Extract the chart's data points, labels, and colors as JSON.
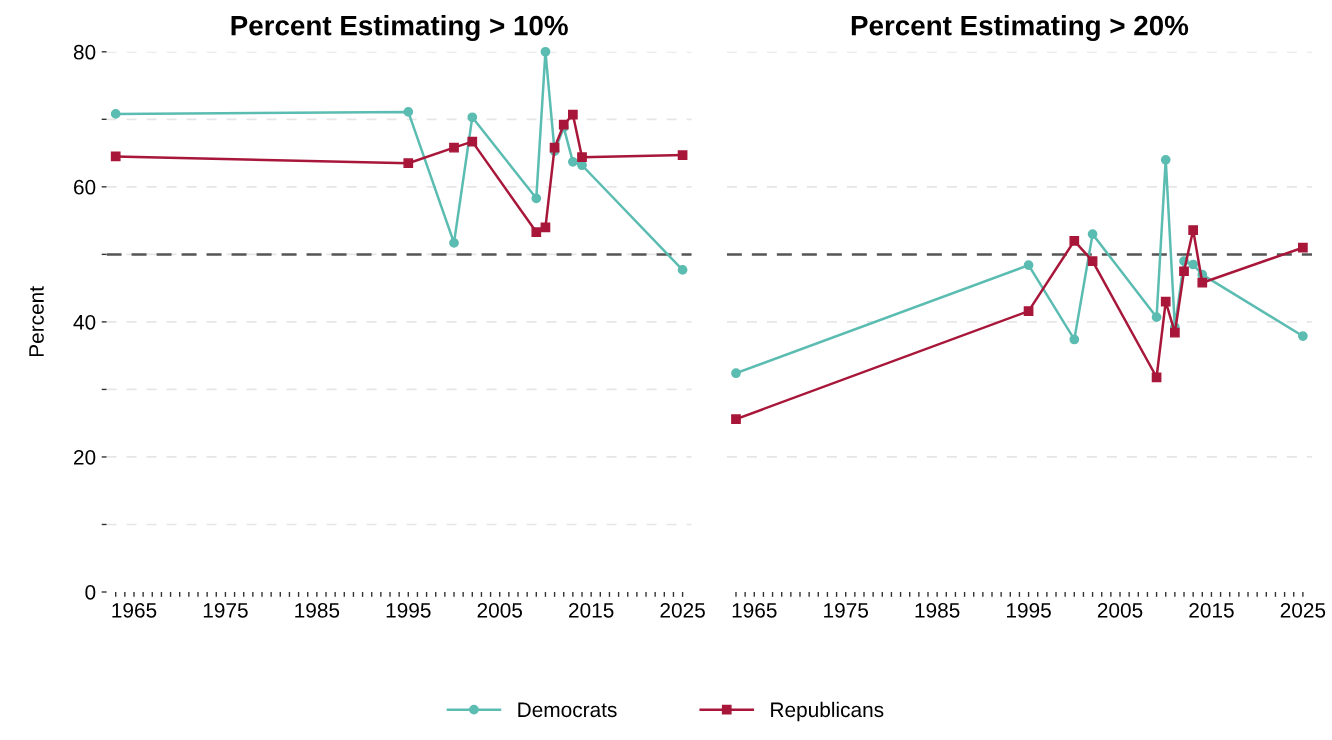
{
  "chart_data": [
    {
      "type": "line",
      "title": "Percent Estimating > 10%",
      "ylabel": "Percent",
      "x": [
        1963,
        1995,
        2000,
        2002,
        2009,
        2010,
        2011,
        2012,
        2013,
        2014,
        2025
      ],
      "series": [
        {
          "name": "Democrats",
          "color": "#5bbcb1",
          "marker": "circle",
          "values": [
            70.8,
            71.1,
            51.7,
            70.3,
            58.3,
            80.0,
            65.3,
            68.8,
            63.7,
            63.2,
            47.7
          ]
        },
        {
          "name": "Republicans",
          "color": "#a8173a",
          "marker": "square",
          "values": [
            64.5,
            63.5,
            65.8,
            66.7,
            53.3,
            54.0,
            65.8,
            69.2,
            70.7,
            64.4,
            64.7
          ]
        }
      ],
      "xlim": [
        1962,
        2026
      ],
      "ylim": [
        0,
        80
      ],
      "xticks": [
        {
          "value": 1963,
          "label": null
        },
        {
          "value": 1964,
          "label": null
        },
        1965,
        {
          "value": 1966,
          "label": null
        },
        {
          "value": 1967,
          "label": null
        },
        {
          "value": 1968,
          "label": null
        },
        {
          "value": 1969,
          "label": null
        },
        {
          "value": 1970,
          "label": null
        },
        {
          "value": 1971,
          "label": null
        },
        {
          "value": 1972,
          "label": null
        },
        {
          "value": 1973,
          "label": null
        },
        {
          "value": 1974,
          "label": null
        },
        1975,
        {
          "value": 1976,
          "label": null
        },
        {
          "value": 1977,
          "label": null
        },
        {
          "value": 1978,
          "label": null
        },
        {
          "value": 1979,
          "label": null
        },
        {
          "value": 1980,
          "label": null
        },
        {
          "value": 1981,
          "label": null
        },
        {
          "value": 1982,
          "label": null
        },
        {
          "value": 1983,
          "label": null
        },
        {
          "value": 1984,
          "label": null
        },
        1985,
        {
          "value": 1986,
          "label": null
        },
        {
          "value": 1987,
          "label": null
        },
        {
          "value": 1988,
          "label": null
        },
        {
          "value": 1989,
          "label": null
        },
        {
          "value": 1990,
          "label": null
        },
        {
          "value": 1991,
          "label": null
        },
        {
          "value": 1992,
          "label": null
        },
        {
          "value": 1993,
          "label": null
        },
        {
          "value": 1994,
          "label": null
        },
        1995,
        {
          "value": 1996,
          "label": null
        },
        {
          "value": 1997,
          "label": null
        },
        {
          "value": 1998,
          "label": null
        },
        {
          "value": 1999,
          "label": null
        },
        {
          "value": 2000,
          "label": null
        },
        {
          "value": 2001,
          "label": null
        },
        {
          "value": 2002,
          "label": null
        },
        {
          "value": 2003,
          "label": null
        },
        {
          "value": 2004,
          "label": null
        },
        2005,
        {
          "value": 2006,
          "label": null
        },
        {
          "value": 2007,
          "label": null
        },
        {
          "value": 2008,
          "label": null
        },
        {
          "value": 2009,
          "label": null
        },
        {
          "value": 2010,
          "label": null
        },
        {
          "value": 2011,
          "label": null
        },
        {
          "value": 2012,
          "label": null
        },
        {
          "value": 2013,
          "label": null
        },
        {
          "value": 2014,
          "label": null
        },
        2015,
        {
          "value": 2016,
          "label": null
        },
        {
          "value": 2017,
          "label": null
        },
        {
          "value": 2018,
          "label": null
        },
        {
          "value": 2019,
          "label": null
        },
        {
          "value": 2020,
          "label": null
        },
        {
          "value": 2021,
          "label": null
        },
        {
          "value": 2022,
          "label": null
        },
        {
          "value": 2023,
          "label": null
        },
        {
          "value": 2024,
          "label": null
        },
        2025
      ],
      "yticks": [
        0,
        {
          "value": 10,
          "label": null
        },
        20,
        {
          "value": 30,
          "label": null
        },
        40,
        {
          "value": 50,
          "label": null
        },
        60,
        {
          "value": 70,
          "label": null
        },
        80
      ],
      "grid": "y",
      "legend": "bottom",
      "line_style": "solid",
      "ref_lines": [
        {
          "axis": "y",
          "value": 50,
          "color": "#555555",
          "line_style": "dashed"
        }
      ]
    },
    {
      "type": "line",
      "title": "Percent Estimating > 20%",
      "x": [
        1963,
        1995,
        2000,
        2002,
        2009,
        2010,
        2011,
        2012,
        2013,
        2014,
        2025
      ],
      "series": [
        {
          "color": "#5bbcb1",
          "marker": "circle",
          "values": [
            32.4,
            48.4,
            37.4,
            53.0,
            40.7,
            64.0,
            39.2,
            49.0,
            48.5,
            47.0,
            37.9
          ]
        },
        {
          "color": "#a8173a",
          "marker": "square",
          "values": [
            25.6,
            41.6,
            52.0,
            49.0,
            31.8,
            43.0,
            38.4,
            47.5,
            53.6,
            45.8,
            51.0
          ]
        }
      ],
      "xlim": [
        1962,
        2026
      ],
      "ylim": [
        0,
        80
      ],
      "xticks": [
        {
          "value": 1963,
          "label": null
        },
        {
          "value": 1964,
          "label": null
        },
        1965,
        {
          "value": 1966,
          "label": null
        },
        {
          "value": 1967,
          "label": null
        },
        {
          "value": 1968,
          "label": null
        },
        {
          "value": 1969,
          "label": null
        },
        {
          "value": 1970,
          "label": null
        },
        {
          "value": 1971,
          "label": null
        },
        {
          "value": 1972,
          "label": null
        },
        {
          "value": 1973,
          "label": null
        },
        {
          "value": 1974,
          "label": null
        },
        1975,
        {
          "value": 1976,
          "label": null
        },
        {
          "value": 1977,
          "label": null
        },
        {
          "value": 1978,
          "label": null
        },
        {
          "value": 1979,
          "label": null
        },
        {
          "value": 1980,
          "label": null
        },
        {
          "value": 1981,
          "label": null
        },
        {
          "value": 1982,
          "label": null
        },
        {
          "value": 1983,
          "label": null
        },
        {
          "value": 1984,
          "label": null
        },
        1985,
        {
          "value": 1986,
          "label": null
        },
        {
          "value": 1987,
          "label": null
        },
        {
          "value": 1988,
          "label": null
        },
        {
          "value": 1989,
          "label": null
        },
        {
          "value": 1990,
          "label": null
        },
        {
          "value": 1991,
          "label": null
        },
        {
          "value": 1992,
          "label": null
        },
        {
          "value": 1993,
          "label": null
        },
        {
          "value": 1994,
          "label": null
        },
        1995,
        {
          "value": 1996,
          "label": null
        },
        {
          "value": 1997,
          "label": null
        },
        {
          "value": 1998,
          "label": null
        },
        {
          "value": 1999,
          "label": null
        },
        {
          "value": 2000,
          "label": null
        },
        {
          "value": 2001,
          "label": null
        },
        {
          "value": 2002,
          "label": null
        },
        {
          "value": 2003,
          "label": null
        },
        {
          "value": 2004,
          "label": null
        },
        2005,
        {
          "value": 2006,
          "label": null
        },
        {
          "value": 2007,
          "label": null
        },
        {
          "value": 2008,
          "label": null
        },
        {
          "value": 2009,
          "label": null
        },
        {
          "value": 2010,
          "label": null
        },
        {
          "value": 2011,
          "label": null
        },
        {
          "value": 2012,
          "label": null
        },
        {
          "value": 2013,
          "label": null
        },
        {
          "value": 2014,
          "label": null
        },
        2015,
        {
          "value": 2016,
          "label": null
        },
        {
          "value": 2017,
          "label": null
        },
        {
          "value": 2018,
          "label": null
        },
        {
          "value": 2019,
          "label": null
        },
        {
          "value": 2020,
          "label": null
        },
        {
          "value": 2021,
          "label": null
        },
        {
          "value": 2022,
          "label": null
        },
        {
          "value": 2023,
          "label": null
        },
        {
          "value": 2024,
          "label": null
        },
        2025
      ],
      "yticks": [
        0,
        20,
        40,
        60,
        80
      ],
      "grid": "y",
      "tick_labels": "x",
      "line_style": "solid",
      "ref_lines": [
        {
          "axis": "y",
          "value": 50,
          "color": "#555555",
          "line_style": "dashed"
        }
      ]
    }
  ]
}
